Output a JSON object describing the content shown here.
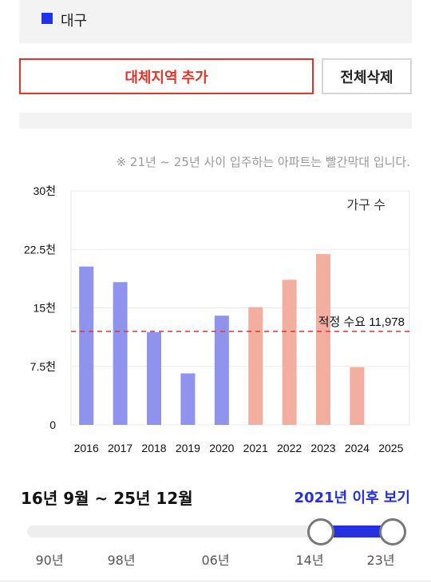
{
  "region": {
    "name": "대구",
    "swatch_color": "#2233ee"
  },
  "buttons": {
    "add_label": "대체지역 추가",
    "delete_label": "전체삭제"
  },
  "note": "※ 21년 ~ 25년 사이 입주하는 아파트는 빨간막대 입니다.",
  "chart_data": {
    "type": "bar",
    "legend": "가구 수",
    "categories": [
      "2016",
      "2017",
      "2018",
      "2019",
      "2020",
      "2021",
      "2022",
      "2023",
      "2024",
      "2025"
    ],
    "values": [
      20300,
      18300,
      11900,
      6600,
      14000,
      15100,
      18600,
      21900,
      7400,
      0
    ],
    "colors": [
      "#8f93ee",
      "#8f93ee",
      "#8f93ee",
      "#8f93ee",
      "#8f93ee",
      "#f2af9f",
      "#f2af9f",
      "#f2af9f",
      "#f2af9f",
      "#f2af9f"
    ],
    "ylim": [
      0,
      30000
    ],
    "ytick_values": [
      0,
      7500,
      15000,
      22500,
      30000
    ],
    "ytick_labels": [
      "0",
      "7.5천",
      "15천",
      "22.5천",
      "30천"
    ],
    "reference": {
      "label": "적정 수요 11,978",
      "value": 11978,
      "color": "#e0352b"
    },
    "grid": true
  },
  "period": {
    "label": "16년 9월 ~ 25년 12월",
    "since_link": "2021년 이후 보기"
  },
  "slider": {
    "ticks": [
      "90년",
      "98년",
      "06년",
      "14년",
      "23년"
    ],
    "selected_from": "14년",
    "selected_to": "23년",
    "fill_color": "#2530e0"
  }
}
